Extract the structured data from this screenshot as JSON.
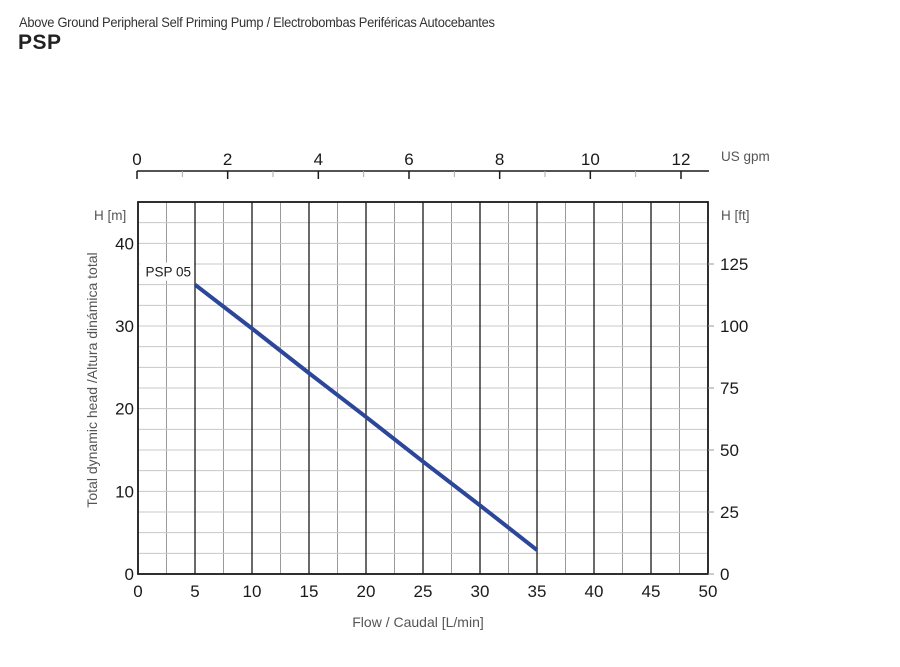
{
  "header": {
    "subtitle": "Above Ground Peripheral Self Priming Pump / Electrobombas Periféricas Autocebantes",
    "title": "PSP"
  },
  "chart_data": {
    "type": "line",
    "title": "PSP",
    "subtitle": "Above Ground Peripheral Self Priming Pump / Electrobombas Periféricas Autocebantes",
    "xlabel": "Flow / Caudal [L/min]",
    "ylabel": "Total dynamic head /Altura dinámica total",
    "xlim": [
      0,
      50
    ],
    "ylim": [
      0,
      45
    ],
    "x_ticks": [
      0,
      5,
      10,
      15,
      20,
      25,
      30,
      35,
      40,
      45,
      50
    ],
    "y_ticks": [
      0,
      10,
      20,
      30,
      40
    ],
    "y_unit_label": "H [m]",
    "secondary_x": {
      "label": "US gpm",
      "ticks": [
        0,
        2,
        4,
        6,
        8,
        10,
        12
      ]
    },
    "secondary_y": {
      "label": "H [ft]",
      "ticks": [
        0,
        25,
        50,
        75,
        100,
        125
      ]
    },
    "grid": true,
    "series": [
      {
        "name": "PSP 05",
        "color": "#2c469a",
        "x": [
          5,
          10,
          15,
          20,
          25,
          30,
          35
        ],
        "y": [
          35,
          29.7,
          24.3,
          19,
          13.6,
          8.3,
          2.9
        ]
      }
    ]
  }
}
